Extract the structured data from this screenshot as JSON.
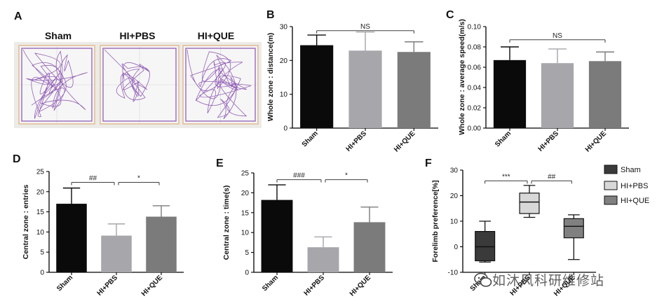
{
  "panel_letters": [
    "A",
    "B",
    "C",
    "D",
    "E",
    "F"
  ],
  "track_panel": {
    "group_labels": [
      "Sham",
      "HI+PBS",
      "HI+QUE"
    ]
  },
  "watermark": "如沐风科研维修站",
  "colors": {
    "sham": "#0a0a0a",
    "pbs": "#a6a6ab",
    "que": "#7b7b7b",
    "box_sham": "#3a3a3a",
    "box_pbs": "#d8d8d8",
    "box_que": "#808080",
    "track_line": "#7a3aa6",
    "track_border": "#e5c8a8",
    "track_bg": "#f6f6f6"
  },
  "chart_data": [
    {
      "panel": "B",
      "type": "bar",
      "categories": [
        "Sham",
        "HI+PBS",
        "HI+QUE"
      ],
      "values": [
        24.5,
        22.9,
        22.5
      ],
      "errors": [
        3.0,
        5.5,
        3.0
      ],
      "ylabel": "Whole zone : distance(m)",
      "ylim": [
        0,
        30
      ],
      "yticks": [
        0,
        10,
        20,
        30
      ],
      "ytick_labels": [
        "0",
        "10",
        "20",
        "30"
      ],
      "annotations": [
        {
          "from": 0,
          "to": 2,
          "y": 28.8,
          "text": "NS"
        }
      ]
    },
    {
      "panel": "C",
      "type": "bar",
      "categories": [
        "Sham",
        "HI+PBS",
        "HI+QUE"
      ],
      "values": [
        0.067,
        0.064,
        0.066
      ],
      "errors": [
        0.013,
        0.014,
        0.009
      ],
      "ylabel": "Whole zone : average speed(m/s)",
      "ylim": [
        0,
        0.1
      ],
      "yticks": [
        0,
        0.02,
        0.04,
        0.06,
        0.08,
        0.1
      ],
      "ytick_labels": [
        "0.00",
        "0.02",
        "0.04",
        "0.06",
        "0.08",
        "0.10"
      ],
      "annotations": [
        {
          "from": 0,
          "to": 2,
          "y": 0.087,
          "text": "NS"
        }
      ]
    },
    {
      "panel": "D",
      "type": "bar",
      "categories": [
        "Sham",
        "HI+PBS",
        "HI+QUE"
      ],
      "values": [
        17.0,
        9.1,
        13.8
      ],
      "errors": [
        3.9,
        2.9,
        2.7
      ],
      "ylabel": "Central zone : entries",
      "ylim": [
        0,
        25
      ],
      "yticks": [
        0,
        5,
        10,
        15,
        20,
        25
      ],
      "ytick_labels": [
        "0",
        "5",
        "10",
        "15",
        "20",
        "25"
      ],
      "annotations": [
        {
          "from": 0,
          "to": 1,
          "y": 22.3,
          "text": "##"
        },
        {
          "from": 1,
          "to": 2,
          "y": 22.3,
          "text": "*"
        }
      ]
    },
    {
      "panel": "E",
      "type": "bar",
      "categories": [
        "Sham",
        "HI+PBS",
        "HI+QUE"
      ],
      "values": [
        18.2,
        6.3,
        12.6
      ],
      "errors": [
        3.8,
        2.6,
        3.8
      ],
      "ylabel": "Central zone : time(s)",
      "ylim": [
        0,
        25
      ],
      "yticks": [
        0,
        5,
        10,
        15,
        20,
        25
      ],
      "ytick_labels": [
        "0",
        "5",
        "10",
        "15",
        "20",
        "25"
      ],
      "annotations": [
        {
          "from": 0,
          "to": 1,
          "y": 23.3,
          "text": "###"
        },
        {
          "from": 1,
          "to": 2,
          "y": 23.3,
          "text": "*"
        }
      ]
    },
    {
      "panel": "F",
      "type": "box",
      "categories": [
        "Sham",
        "HI+PBS",
        "HI+QUE"
      ],
      "boxes": [
        {
          "min": -6.0,
          "q1": -5.5,
          "median": 0.0,
          "q3": 6.0,
          "max": 10.0
        },
        {
          "min": 11.5,
          "q1": 13.0,
          "median": 17.5,
          "q3": 21.0,
          "max": 24.0
        },
        {
          "min": -5.0,
          "q1": 3.5,
          "median": 8.0,
          "q3": 11.0,
          "max": 12.5
        }
      ],
      "ylabel": "Forelimb preference[%]",
      "ylim": [
        -10,
        30
      ],
      "yticks": [
        -10,
        0,
        10,
        20,
        30
      ],
      "ytick_labels": [
        "-10",
        "0",
        "10",
        "20",
        "30"
      ],
      "annotations": [
        {
          "from": 0,
          "to": 1,
          "y": 25.8,
          "text": "***"
        },
        {
          "from": 1,
          "to": 2,
          "y": 25.8,
          "text": "##"
        }
      ],
      "legend": [
        "Sham",
        "HI+PBS",
        "HI+QUE"
      ]
    }
  ]
}
